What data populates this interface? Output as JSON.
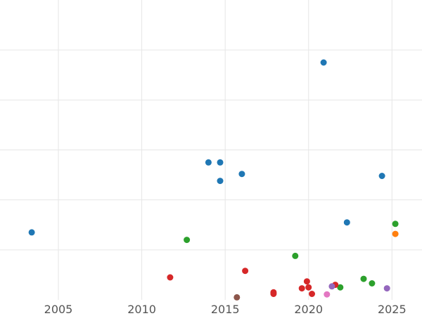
{
  "chart_data": {
    "type": "scatter",
    "title": "",
    "xlabel": "",
    "ylabel": "",
    "grid": true,
    "legend": "none",
    "xlim": [
      2001.5,
      2026.8
    ],
    "ylim": [
      0,
      6
    ],
    "x_ticks": [
      2005,
      2010,
      2015,
      2020,
      2025
    ],
    "x_tick_labels": [
      "2005",
      "2010",
      "2015",
      "2020",
      "2025"
    ],
    "y_ticks": [
      1,
      2,
      3,
      4,
      5
    ],
    "series": [
      {
        "color": "#1f77b4",
        "points": [
          {
            "x": 2003.4,
            "y": 1.35
          },
          {
            "x": 2014.0,
            "y": 2.75
          },
          {
            "x": 2014.7,
            "y": 2.75
          },
          {
            "x": 2014.7,
            "y": 2.38
          },
          {
            "x": 2016.0,
            "y": 2.52
          },
          {
            "x": 2020.9,
            "y": 4.75
          },
          {
            "x": 2022.3,
            "y": 1.55
          },
          {
            "x": 2024.4,
            "y": 2.48
          }
        ]
      },
      {
        "color": "#ff7f0e",
        "points": [
          {
            "x": 2025.2,
            "y": 1.32
          }
        ]
      },
      {
        "color": "#2ca02c",
        "points": [
          {
            "x": 2012.7,
            "y": 1.2
          },
          {
            "x": 2019.2,
            "y": 0.88
          },
          {
            "x": 2021.9,
            "y": 0.25
          },
          {
            "x": 2023.3,
            "y": 0.42
          },
          {
            "x": 2023.8,
            "y": 0.33
          },
          {
            "x": 2025.2,
            "y": 1.52
          }
        ]
      },
      {
        "color": "#d62728",
        "points": [
          {
            "x": 2011.7,
            "y": 0.45
          },
          {
            "x": 2016.2,
            "y": 0.58
          },
          {
            "x": 2017.9,
            "y": 0.15
          },
          {
            "x": 2017.9,
            "y": 0.12
          },
          {
            "x": 2019.6,
            "y": 0.23
          },
          {
            "x": 2019.9,
            "y": 0.37
          },
          {
            "x": 2020.0,
            "y": 0.25
          },
          {
            "x": 2020.2,
            "y": 0.12
          },
          {
            "x": 2021.6,
            "y": 0.3
          }
        ]
      },
      {
        "color": "#9467bd",
        "points": [
          {
            "x": 2021.4,
            "y": 0.27
          },
          {
            "x": 2024.7,
            "y": 0.23
          }
        ]
      },
      {
        "color": "#8c564b",
        "points": [
          {
            "x": 2015.7,
            "y": 0.05
          }
        ]
      },
      {
        "color": "#e377c2",
        "points": [
          {
            "x": 2021.1,
            "y": 0.11
          }
        ]
      }
    ]
  }
}
